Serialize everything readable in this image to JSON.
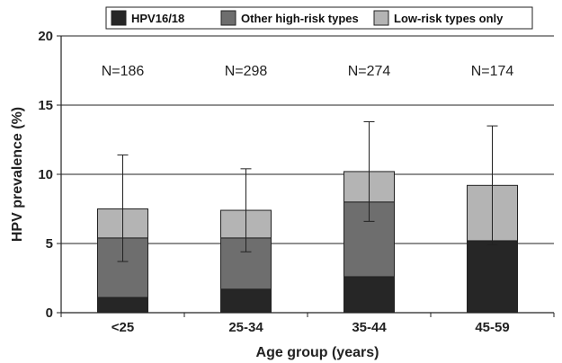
{
  "chart_data": {
    "type": "bar",
    "stacked": true,
    "categories": [
      "<25",
      "25-34",
      "35-44",
      "45-59"
    ],
    "series": [
      {
        "name": "HPV16/18",
        "values": [
          1.1,
          1.7,
          2.6,
          5.2
        ],
        "color": "#262626"
      },
      {
        "name": "Other high-risk types",
        "values": [
          4.3,
          3.7,
          5.4,
          0.0
        ],
        "color": "#6e6e6e"
      },
      {
        "name": "Low-risk types only",
        "values": [
          2.1,
          2.0,
          2.2,
          4.0
        ],
        "color": "#b4b4b4"
      }
    ],
    "error_bars": [
      {
        "center": 5.4,
        "low": 3.7,
        "high": 11.4
      },
      {
        "center": 5.4,
        "low": 4.4,
        "high": 10.4
      },
      {
        "center": 8.0,
        "low": 6.6,
        "high": 13.8
      },
      {
        "center": 5.2,
        "low": 4.9,
        "high": 13.5
      }
    ],
    "n_labels": [
      "N=186",
      "N=298",
      "N=274",
      "N=174"
    ],
    "xlabel": "Age group (years)",
    "ylabel": "HPV prevalence (%)",
    "ylim": [
      0,
      20
    ],
    "yticks": [
      0,
      5,
      10,
      15,
      20
    ],
    "grid": true,
    "legend_position": "top"
  }
}
